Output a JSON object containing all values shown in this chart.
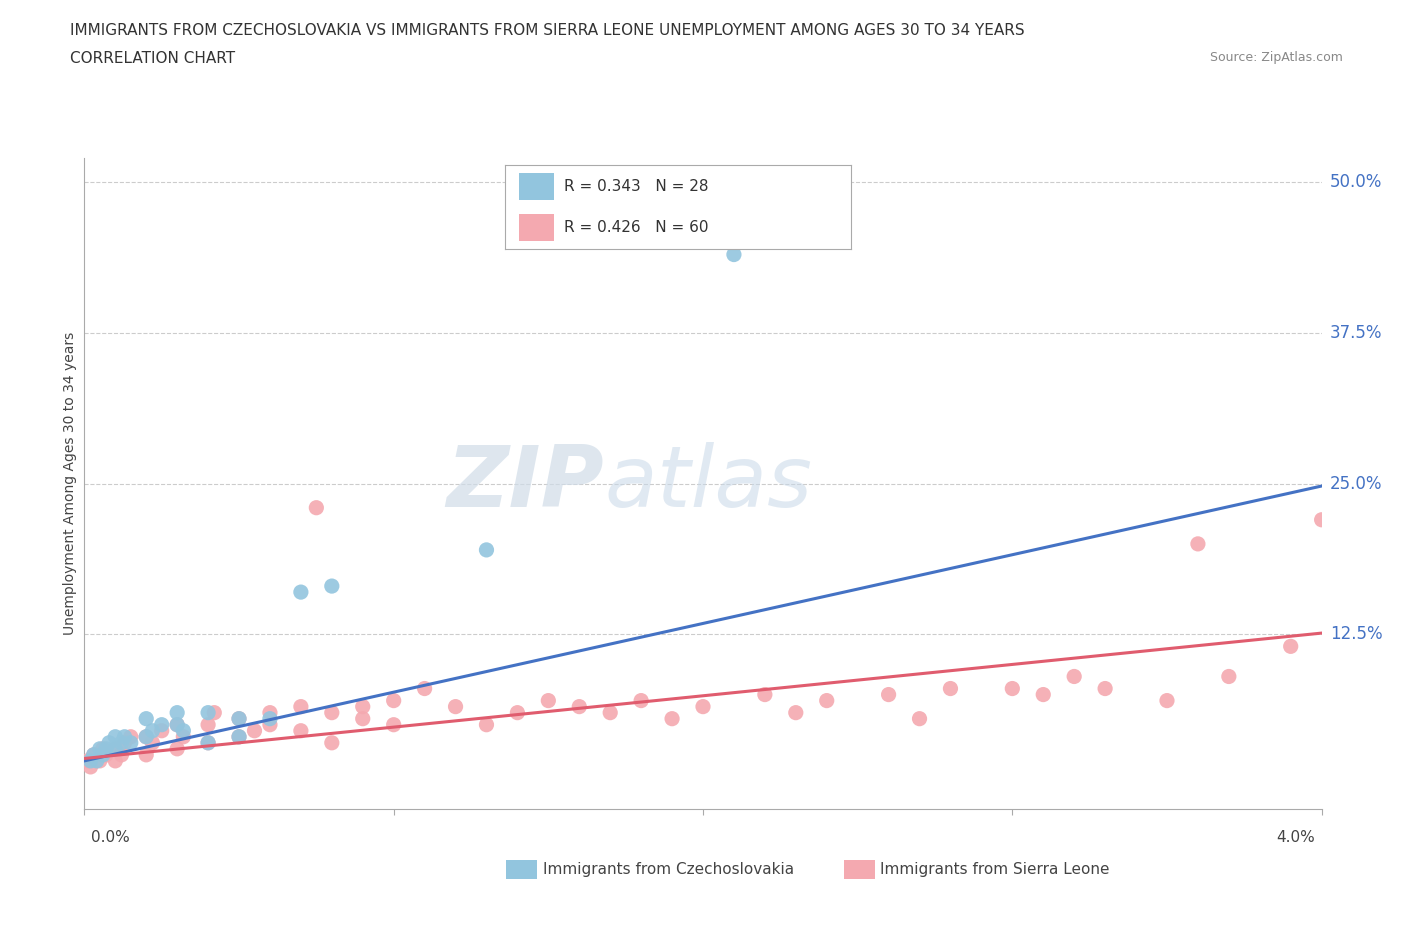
{
  "title_line1": "IMMIGRANTS FROM CZECHOSLOVAKIA VS IMMIGRANTS FROM SIERRA LEONE UNEMPLOYMENT AMONG AGES 30 TO 34 YEARS",
  "title_line2": "CORRELATION CHART",
  "source": "Source: ZipAtlas.com",
  "ylabel": "Unemployment Among Ages 30 to 34 years",
  "xlim": [
    0.0,
    0.04
  ],
  "ylim": [
    -0.02,
    0.52
  ],
  "ytick_positions": [
    0.0,
    0.125,
    0.25,
    0.375,
    0.5
  ],
  "ytick_labels": [
    "",
    "12.5%",
    "25.0%",
    "37.5%",
    "50.0%"
  ],
  "grid_color": "#cccccc",
  "background_color": "#ffffff",
  "czech_color": "#92c5de",
  "sierra_color": "#f4a9b0",
  "czech_line_color": "#4472c4",
  "sierra_line_color": "#e05c6e",
  "legend_R_czech": "R = 0.343",
  "legend_N_czech": "N = 28",
  "legend_R_sierra": "R = 0.426",
  "legend_N_sierra": "N = 60",
  "watermark_zip": "ZIP",
  "watermark_atlas": "atlas",
  "czech_scatter_x": [
    0.0002,
    0.0003,
    0.0004,
    0.0005,
    0.0006,
    0.0007,
    0.0008,
    0.001,
    0.001,
    0.0012,
    0.0013,
    0.0015,
    0.002,
    0.002,
    0.0022,
    0.0025,
    0.003,
    0.003,
    0.0032,
    0.004,
    0.004,
    0.005,
    0.005,
    0.006,
    0.007,
    0.008,
    0.013,
    0.021
  ],
  "czech_scatter_y": [
    0.02,
    0.025,
    0.02,
    0.03,
    0.025,
    0.03,
    0.035,
    0.03,
    0.04,
    0.035,
    0.04,
    0.035,
    0.04,
    0.055,
    0.045,
    0.05,
    0.05,
    0.06,
    0.045,
    0.06,
    0.035,
    0.055,
    0.04,
    0.055,
    0.16,
    0.165,
    0.195,
    0.44
  ],
  "sierra_scatter_x": [
    0.0001,
    0.0002,
    0.0003,
    0.0005,
    0.0006,
    0.0007,
    0.001,
    0.001,
    0.0012,
    0.0013,
    0.0015,
    0.002,
    0.002,
    0.0022,
    0.0025,
    0.003,
    0.003,
    0.0032,
    0.004,
    0.004,
    0.0042,
    0.005,
    0.005,
    0.0055,
    0.006,
    0.006,
    0.007,
    0.007,
    0.0075,
    0.008,
    0.008,
    0.009,
    0.009,
    0.01,
    0.01,
    0.011,
    0.012,
    0.013,
    0.014,
    0.015,
    0.016,
    0.017,
    0.018,
    0.019,
    0.02,
    0.022,
    0.023,
    0.024,
    0.026,
    0.027,
    0.028,
    0.03,
    0.031,
    0.032,
    0.033,
    0.035,
    0.036,
    0.037,
    0.039,
    0.04
  ],
  "sierra_scatter_y": [
    0.02,
    0.015,
    0.025,
    0.02,
    0.03,
    0.025,
    0.02,
    0.03,
    0.025,
    0.035,
    0.04,
    0.025,
    0.04,
    0.035,
    0.045,
    0.03,
    0.05,
    0.04,
    0.035,
    0.05,
    0.06,
    0.04,
    0.055,
    0.045,
    0.05,
    0.06,
    0.045,
    0.065,
    0.23,
    0.035,
    0.06,
    0.055,
    0.065,
    0.07,
    0.05,
    0.08,
    0.065,
    0.05,
    0.06,
    0.07,
    0.065,
    0.06,
    0.07,
    0.055,
    0.065,
    0.075,
    0.06,
    0.07,
    0.075,
    0.055,
    0.08,
    0.08,
    0.075,
    0.09,
    0.08,
    0.07,
    0.2,
    0.09,
    0.115,
    0.22
  ]
}
